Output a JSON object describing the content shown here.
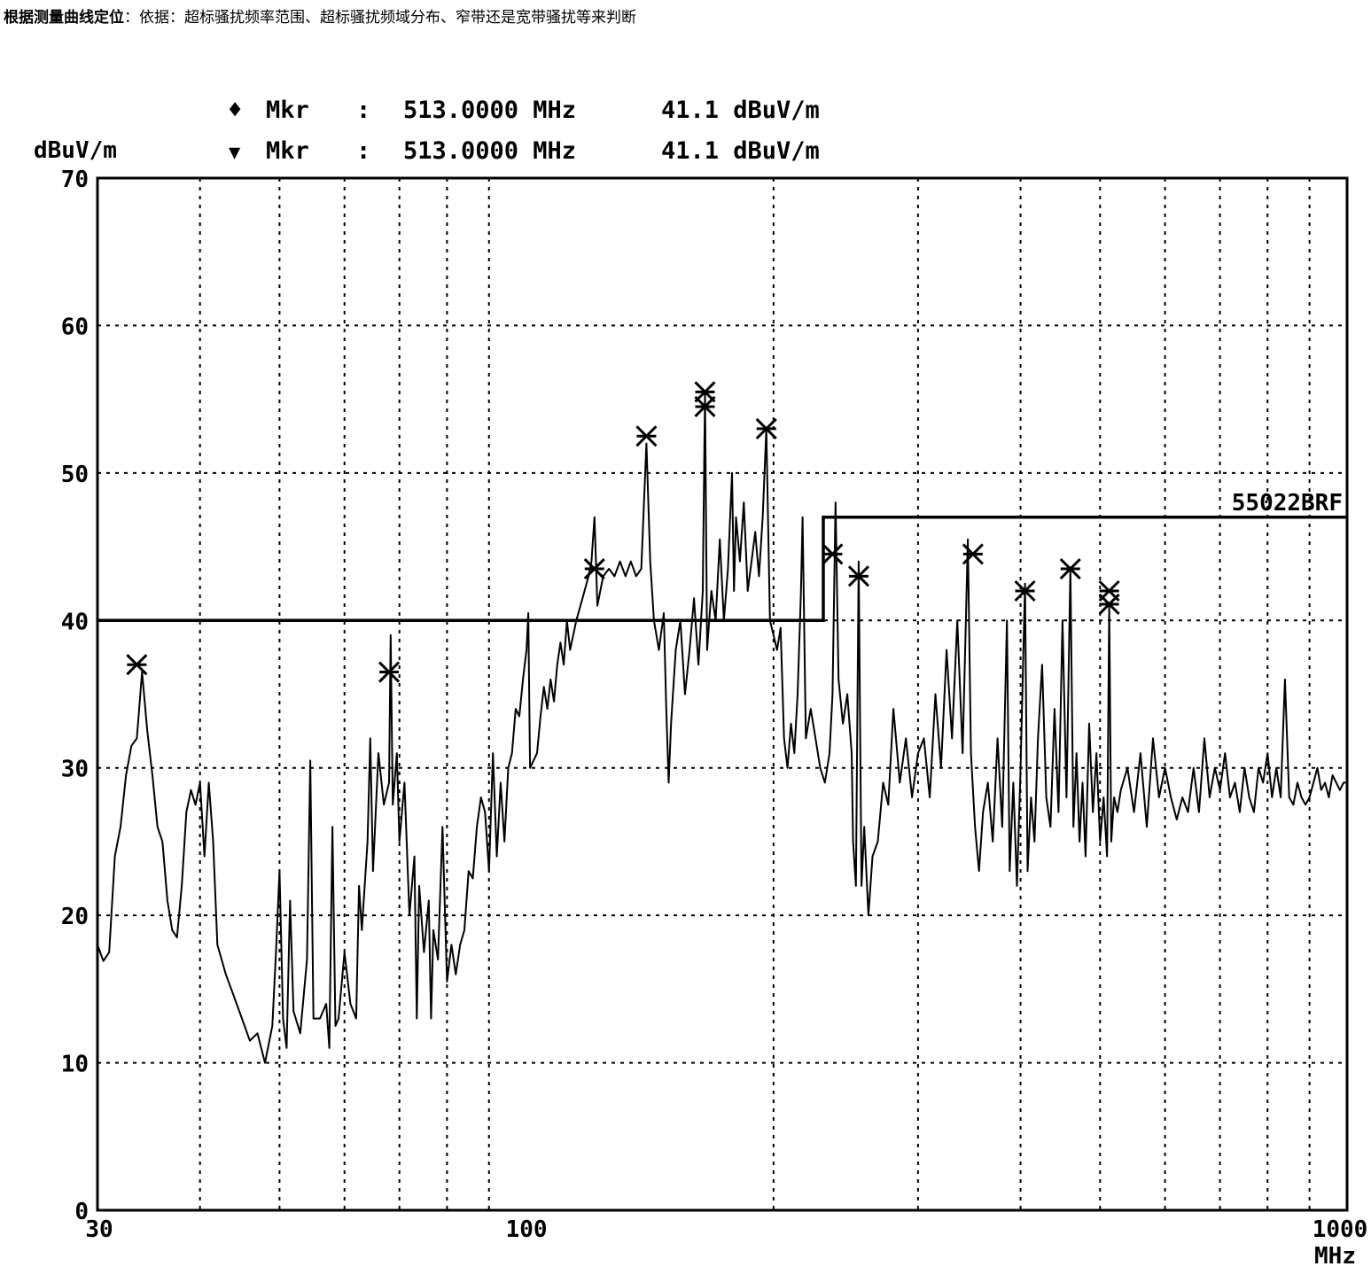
{
  "caption": {
    "bold": "根据测量曲线定位",
    "rest": "：依据：超标骚扰频率范围、超标骚扰频域分布、窄带还是宽带骚扰等来判断"
  },
  "markers": [
    {
      "symbol": "♦",
      "label": "Mkr",
      "sep": ":",
      "freq": "513.0000 MHz",
      "level": "41.1 dBuV/m"
    },
    {
      "symbol": "▼",
      "label": "Mkr",
      "sep": ":",
      "freq": "513.0000 MHz",
      "level": "41.1 dBuV/m"
    }
  ],
  "chart_data": {
    "type": "line",
    "xscale": "log",
    "xlim": [
      30,
      1000
    ],
    "ylim": [
      0,
      70
    ],
    "ylabel": "dBuV/m",
    "xunit": "MHz",
    "x_tick_labels": [
      "30",
      "100",
      "1000"
    ],
    "x_gridlines": [
      40,
      50,
      60,
      70,
      80,
      90,
      200,
      300,
      400,
      500,
      600,
      700,
      800,
      900
    ],
    "y_ticks": [
      0,
      10,
      20,
      30,
      40,
      50,
      60,
      70
    ],
    "y_tick_labels": [
      "0",
      "10",
      "20",
      "30",
      "40",
      "50",
      "60",
      "70"
    ],
    "grid": true,
    "limit_line": {
      "label": "55022BRF",
      "points": [
        [
          30,
          40
        ],
        [
          230,
          40
        ],
        [
          230,
          47
        ],
        [
          1000,
          47
        ]
      ]
    },
    "peak_markers": [
      {
        "x": 33.5,
        "y": 37.0
      },
      {
        "x": 68,
        "y": 36.5
      },
      {
        "x": 121,
        "y": 43.5
      },
      {
        "x": 140,
        "y": 52.5
      },
      {
        "x": 165,
        "y": 55.5
      },
      {
        "x": 165,
        "y": 54.5
      },
      {
        "x": 196,
        "y": 53.0
      },
      {
        "x": 236,
        "y": 44.5
      },
      {
        "x": 254,
        "y": 43.0
      },
      {
        "x": 350,
        "y": 44.5
      },
      {
        "x": 405,
        "y": 42.0
      },
      {
        "x": 460,
        "y": 43.5
      },
      {
        "x": 513,
        "y": 42.0
      },
      {
        "x": 513,
        "y": 41.1
      }
    ],
    "series": [
      {
        "values": [
          [
            30,
            18.0
          ],
          [
            30.5,
            16.9
          ],
          [
            31,
            17.5
          ],
          [
            31.5,
            24.0
          ],
          [
            32,
            26.0
          ],
          [
            32.5,
            29.5
          ],
          [
            33,
            31.5
          ],
          [
            33.5,
            32.0
          ],
          [
            34,
            36.5
          ],
          [
            34.5,
            32.5
          ],
          [
            35,
            29.5
          ],
          [
            35.5,
            26.0
          ],
          [
            36,
            25.0
          ],
          [
            36.5,
            21.0
          ],
          [
            37,
            19.0
          ],
          [
            37.5,
            18.5
          ],
          [
            38,
            22.0
          ],
          [
            38.5,
            27.0
          ],
          [
            39,
            28.5
          ],
          [
            39.5,
            27.5
          ],
          [
            40,
            29.0
          ],
          [
            40.5,
            24.0
          ],
          [
            41,
            29.0
          ],
          [
            41.5,
            25.0
          ],
          [
            42,
            18.0
          ],
          [
            43,
            16.0
          ],
          [
            44,
            14.5
          ],
          [
            45,
            13.0
          ],
          [
            46,
            11.5
          ],
          [
            47,
            12.0
          ],
          [
            48,
            10.0
          ],
          [
            49,
            12.5
          ],
          [
            49.5,
            17.5
          ],
          [
            50,
            23.0
          ],
          [
            50.5,
            13.0
          ],
          [
            51,
            11.0
          ],
          [
            51.5,
            21.0
          ],
          [
            52,
            13.5
          ],
          [
            53,
            12.0
          ],
          [
            54,
            17.0
          ],
          [
            54.5,
            30.5
          ],
          [
            55,
            13.0
          ],
          [
            56,
            13.0
          ],
          [
            57,
            14.0
          ],
          [
            57.5,
            11.0
          ],
          [
            58,
            26.0
          ],
          [
            58.5,
            12.5
          ],
          [
            59,
            13.0
          ],
          [
            60,
            17.5
          ],
          [
            61,
            14.0
          ],
          [
            62,
            13.0
          ],
          [
            62.5,
            22.0
          ],
          [
            63,
            19.0
          ],
          [
            64,
            25.0
          ],
          [
            64.5,
            32.0
          ],
          [
            65,
            23.0
          ],
          [
            66,
            31.0
          ],
          [
            67,
            27.5
          ],
          [
            68,
            29.0
          ],
          [
            68.3,
            39.0
          ],
          [
            68.7,
            27.5
          ],
          [
            69.5,
            31.0
          ],
          [
            70,
            25.0
          ],
          [
            71,
            29.0
          ],
          [
            72,
            20.0
          ],
          [
            73,
            24.0
          ],
          [
            73.5,
            13.0
          ],
          [
            74,
            22.0
          ],
          [
            75,
            17.5
          ],
          [
            76,
            21.0
          ],
          [
            76.5,
            13.0
          ],
          [
            77,
            19.0
          ],
          [
            78,
            17.0
          ],
          [
            79,
            26.0
          ],
          [
            80,
            15.5
          ],
          [
            81,
            18.0
          ],
          [
            82,
            16.0
          ],
          [
            83,
            18.0
          ],
          [
            84,
            19.0
          ],
          [
            85,
            23.0
          ],
          [
            86,
            22.5
          ],
          [
            87,
            26.0
          ],
          [
            88,
            28.0
          ],
          [
            89,
            27.0
          ],
          [
            90,
            23.0
          ],
          [
            91,
            31.0
          ],
          [
            92,
            24.0
          ],
          [
            93,
            29.0
          ],
          [
            94,
            25.0
          ],
          [
            95,
            30.0
          ],
          [
            96,
            31.0
          ],
          [
            97,
            34.0
          ],
          [
            98,
            33.5
          ],
          [
            99,
            36.0
          ],
          [
            100,
            38.0
          ],
          [
            100.5,
            40.5
          ],
          [
            101,
            30.0
          ],
          [
            103,
            31.0
          ],
          [
            104,
            33.5
          ],
          [
            105,
            35.5
          ],
          [
            106,
            34.0
          ],
          [
            107,
            36.0
          ],
          [
            108,
            34.5
          ],
          [
            109,
            37.0
          ],
          [
            110,
            38.5
          ],
          [
            111,
            37.0
          ],
          [
            112,
            40.0
          ],
          [
            113,
            38.0
          ],
          [
            115,
            40.0
          ],
          [
            117,
            41.5
          ],
          [
            119,
            43.0
          ],
          [
            120,
            44.0
          ],
          [
            121,
            47.0
          ],
          [
            122,
            41.0
          ],
          [
            124,
            43.0
          ],
          [
            126,
            43.5
          ],
          [
            128,
            43.0
          ],
          [
            130,
            44.0
          ],
          [
            132,
            43.0
          ],
          [
            134,
            44.0
          ],
          [
            136,
            43.0
          ],
          [
            138,
            43.5
          ],
          [
            140,
            52.0
          ],
          [
            141.5,
            44.0
          ],
          [
            143,
            40.0
          ],
          [
            145,
            38.0
          ],
          [
            147,
            40.5
          ],
          [
            148,
            34.0
          ],
          [
            149,
            29.0
          ],
          [
            150,
            33.0
          ],
          [
            152,
            38.0
          ],
          [
            154,
            40.0
          ],
          [
            156,
            35.0
          ],
          [
            158,
            38.0
          ],
          [
            160,
            41.5
          ],
          [
            162,
            37.0
          ],
          [
            164,
            42.0
          ],
          [
            165,
            55.5
          ],
          [
            166,
            38.0
          ],
          [
            168,
            42.0
          ],
          [
            170,
            40.0
          ],
          [
            172,
            45.5
          ],
          [
            174,
            40.0
          ],
          [
            176,
            43.5
          ],
          [
            178,
            50.0
          ],
          [
            179,
            42.0
          ],
          [
            180,
            47.0
          ],
          [
            182,
            44.0
          ],
          [
            184,
            48.0
          ],
          [
            186,
            42.0
          ],
          [
            188,
            44.0
          ],
          [
            190,
            46.0
          ],
          [
            192,
            43.0
          ],
          [
            194,
            47.0
          ],
          [
            196,
            53.0
          ],
          [
            198,
            40.0
          ],
          [
            200,
            39.0
          ],
          [
            202,
            38.0
          ],
          [
            204,
            39.5
          ],
          [
            206,
            32.0
          ],
          [
            208,
            30.0
          ],
          [
            210,
            33.0
          ],
          [
            212,
            31.0
          ],
          [
            214,
            35.0
          ],
          [
            216,
            42.0
          ],
          [
            217,
            47.0
          ],
          [
            219,
            32.0
          ],
          [
            222,
            34.0
          ],
          [
            225,
            32.0
          ],
          [
            228,
            30.0
          ],
          [
            231,
            29.0
          ],
          [
            234,
            31.0
          ],
          [
            236,
            35.0
          ],
          [
            238,
            48.0
          ],
          [
            240,
            36.0
          ],
          [
            243,
            33.0
          ],
          [
            246,
            35.0
          ],
          [
            249,
            31.0
          ],
          [
            250,
            25.0
          ],
          [
            252,
            22.0
          ],
          [
            254,
            44.0
          ],
          [
            256,
            22.0
          ],
          [
            258,
            26.0
          ],
          [
            261,
            20.0
          ],
          [
            264,
            24.0
          ],
          [
            268,
            25.0
          ],
          [
            272,
            29.0
          ],
          [
            276,
            27.5
          ],
          [
            280,
            34.0
          ],
          [
            285,
            29.0
          ],
          [
            290,
            32.0
          ],
          [
            295,
            28.0
          ],
          [
            300,
            31.0
          ],
          [
            305,
            32.0
          ],
          [
            310,
            28.0
          ],
          [
            315,
            35.0
          ],
          [
            320,
            30.0
          ],
          [
            325,
            38.0
          ],
          [
            330,
            32.0
          ],
          [
            335,
            40.0
          ],
          [
            340,
            31.0
          ],
          [
            345,
            45.5
          ],
          [
            348,
            31.0
          ],
          [
            352,
            26.0
          ],
          [
            356,
            23.0
          ],
          [
            360,
            27.0
          ],
          [
            365,
            29.0
          ],
          [
            370,
            25.0
          ],
          [
            375,
            32.0
          ],
          [
            380,
            26.0
          ],
          [
            385,
            40.0
          ],
          [
            388,
            23.0
          ],
          [
            392,
            29.0
          ],
          [
            396,
            22.0
          ],
          [
            400,
            30.0
          ],
          [
            405,
            42.5
          ],
          [
            408,
            23.0
          ],
          [
            412,
            28.0
          ],
          [
            416,
            25.0
          ],
          [
            420,
            32.0
          ],
          [
            425,
            37.0
          ],
          [
            430,
            28.0
          ],
          [
            435,
            26.0
          ],
          [
            440,
            34.0
          ],
          [
            445,
            27.0
          ],
          [
            450,
            40.0
          ],
          [
            455,
            28.0
          ],
          [
            460,
            43.5
          ],
          [
            464,
            26.0
          ],
          [
            468,
            31.0
          ],
          [
            472,
            25.0
          ],
          [
            476,
            29.0
          ],
          [
            480,
            24.0
          ],
          [
            485,
            33.0
          ],
          [
            490,
            27.0
          ],
          [
            495,
            31.0
          ],
          [
            500,
            25.0
          ],
          [
            505,
            28.0
          ],
          [
            510,
            24.0
          ],
          [
            513,
            41.0
          ],
          [
            516,
            25.0
          ],
          [
            520,
            28.0
          ],
          [
            525,
            27.0
          ],
          [
            530,
            28.5
          ],
          [
            540,
            30.0
          ],
          [
            550,
            27.0
          ],
          [
            560,
            31.0
          ],
          [
            570,
            26.0
          ],
          [
            580,
            32.0
          ],
          [
            590,
            28.0
          ],
          [
            600,
            30.0
          ],
          [
            610,
            28.0
          ],
          [
            620,
            26.5
          ],
          [
            630,
            28.0
          ],
          [
            640,
            27.0
          ],
          [
            650,
            30.0
          ],
          [
            660,
            27.0
          ],
          [
            670,
            32.0
          ],
          [
            680,
            28.0
          ],
          [
            690,
            30.0
          ],
          [
            700,
            28.5
          ],
          [
            710,
            31.0
          ],
          [
            720,
            28.0
          ],
          [
            730,
            29.0
          ],
          [
            740,
            27.0
          ],
          [
            750,
            30.0
          ],
          [
            760,
            28.0
          ],
          [
            770,
            27.0
          ],
          [
            780,
            30.0
          ],
          [
            790,
            29.0
          ],
          [
            800,
            31.0
          ],
          [
            810,
            28.0
          ],
          [
            820,
            30.0
          ],
          [
            830,
            28.0
          ],
          [
            840,
            36.0
          ],
          [
            850,
            28.0
          ],
          [
            860,
            27.5
          ],
          [
            870,
            29.0
          ],
          [
            880,
            28.0
          ],
          [
            890,
            27.5
          ],
          [
            900,
            28.0
          ],
          [
            910,
            29.0
          ],
          [
            920,
            30.0
          ],
          [
            930,
            28.5
          ],
          [
            940,
            29.0
          ],
          [
            950,
            28.0
          ],
          [
            960,
            29.5
          ],
          [
            970,
            29.0
          ],
          [
            980,
            28.5
          ],
          [
            990,
            29.0
          ],
          [
            1000,
            29.0
          ]
        ]
      }
    ]
  }
}
